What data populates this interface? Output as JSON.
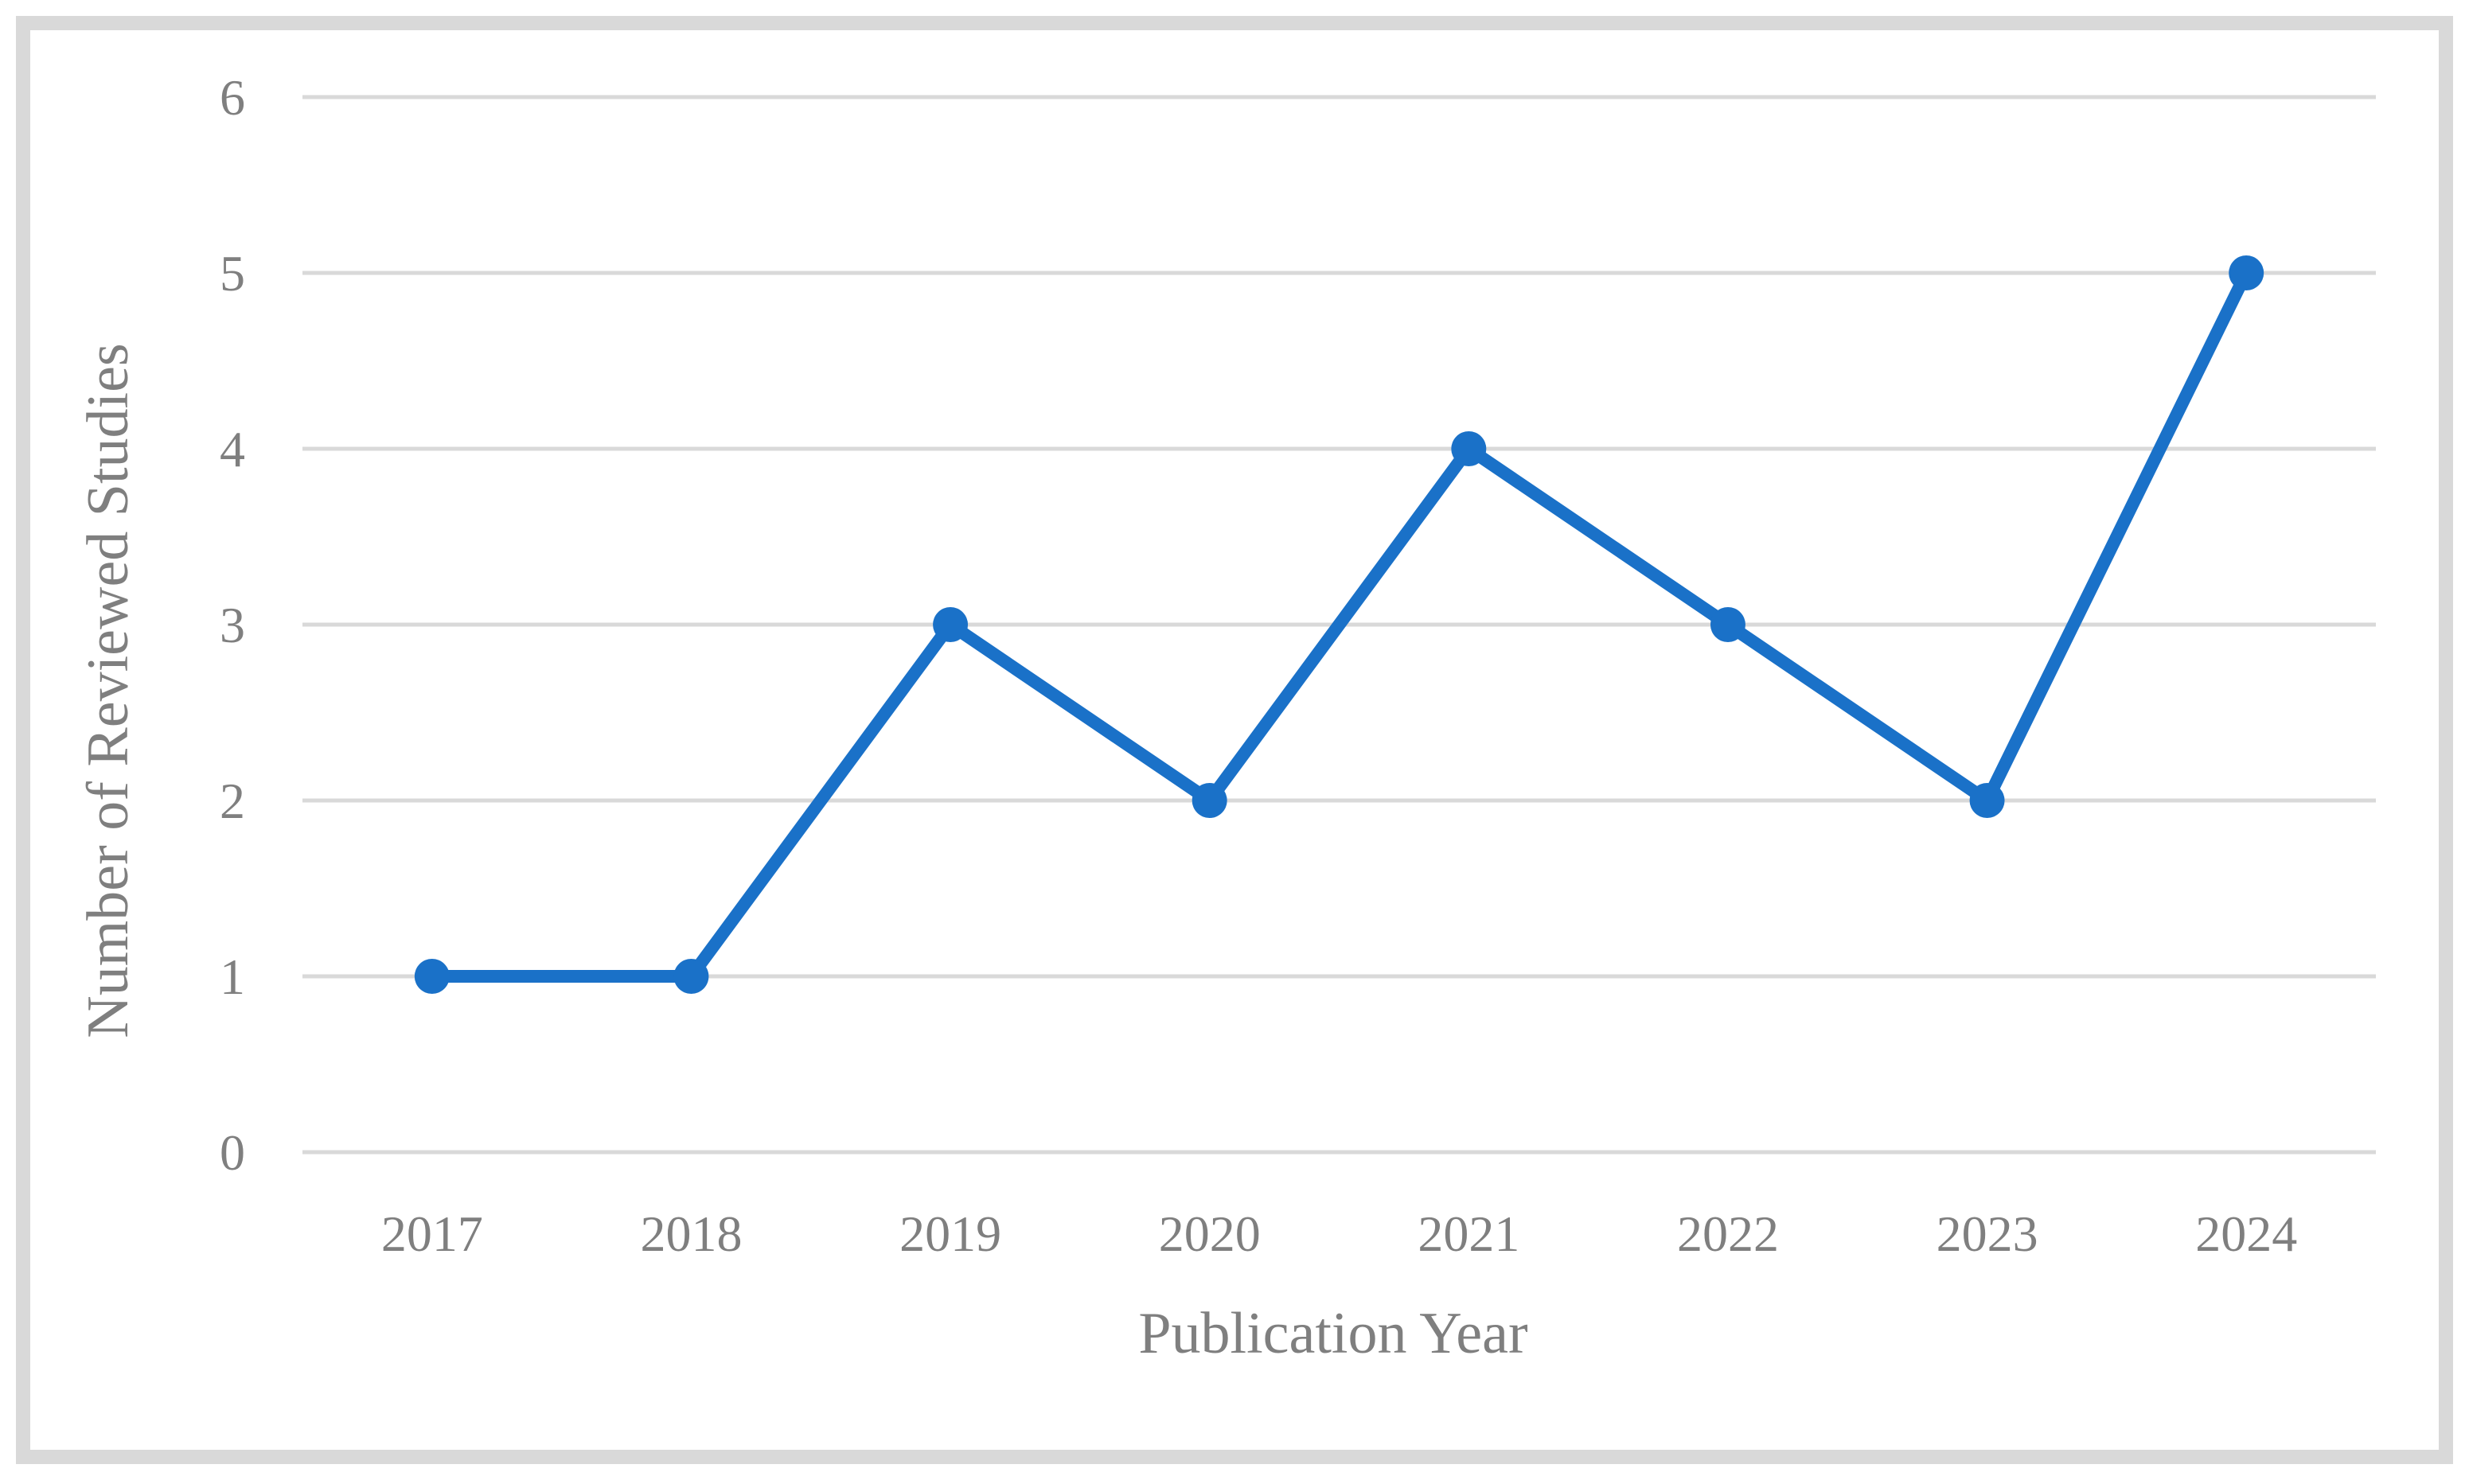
{
  "chart_data": {
    "type": "line",
    "categories": [
      "2017",
      "2018",
      "2019",
      "2020",
      "2021",
      "2022",
      "2023",
      "2024"
    ],
    "series": [
      {
        "values": [
          1,
          1,
          3,
          2,
          4,
          3,
          2,
          5
        ]
      }
    ],
    "xlabel": "Publication Year",
    "ylabel": "Number of Reviewed Studies",
    "ylim": [
      0,
      6
    ],
    "yticks": [
      "0",
      "1",
      "2",
      "3",
      "4",
      "5",
      "6"
    ],
    "grid": true,
    "legend": "none",
    "colors": {
      "line": "#1a71c8",
      "grid": "#d9d9d9",
      "text": "#7f7f7f",
      "frame": "#d9d9d9"
    }
  }
}
